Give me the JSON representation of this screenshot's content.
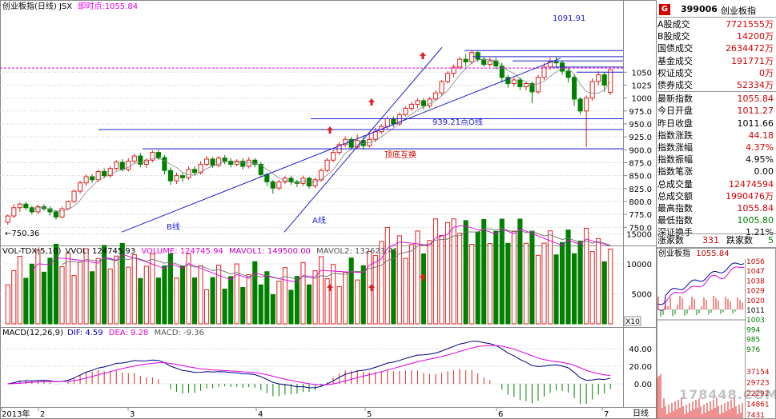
{
  "main_header": {
    "title": "创业板指(日线) JSX",
    "realtime_label": "即时点:",
    "realtime_value": "1055.84"
  },
  "main_chart": {
    "price_axis_ticks": [
      "1050",
      "1025",
      "1000",
      "975.0",
      "950.0",
      "925.0",
      "900.0",
      "875.0",
      "850.0",
      "825.0",
      "800.0",
      "775.0",
      "750.0"
    ],
    "annotations": {
      "high_label": "1091.91",
      "low_label": "750.36",
      "line_o": "939.21点O线",
      "line_b": "B线",
      "line_a": "A线",
      "top_bottom_swap": "顶底互换"
    }
  },
  "volume_header": {
    "name": "VOL-TDX(5,10)",
    "vvol": "VVOL: 124745.93",
    "volume": "VOLUME: 124745.94",
    "mavol1": "MAVOL1: 149500.00",
    "mavol2": "MAVOL2: 132623.41"
  },
  "volume_chart": {
    "axis_ticks": [
      "15000",
      "10000",
      "5000"
    ],
    "unit_badge": "X10"
  },
  "macd_header": {
    "name": "MACD(12,26,9)",
    "dif": "DIF: 4.59",
    "dea": "DEA: 9.28",
    "macd": "MACD: -9.36"
  },
  "macd_chart": {
    "axis_ticks": [
      "40.00",
      "20.00",
      "0.00"
    ]
  },
  "time_axis": {
    "labels": [
      "2013年",
      "2",
      "3",
      "4",
      "5",
      "6",
      "7"
    ],
    "period": "日线"
  },
  "side_panel": {
    "badge": "G",
    "code": "399006",
    "name": "创业板指",
    "rows": [
      {
        "label": "A股成交",
        "value": "7721555万",
        "color": "#d00000"
      },
      {
        "label": "B股成交",
        "value": "14200万",
        "color": "#d00000"
      },
      {
        "label": "国债成交",
        "value": "2634472万",
        "color": "#d00000"
      },
      {
        "label": "基金成交",
        "value": "191771万",
        "color": "#d00000"
      },
      {
        "label": "权证成交",
        "value": "0万",
        "color": "#d00000"
      },
      {
        "label": "债券成交",
        "value": "52334万",
        "color": "#d00000"
      },
      {
        "label": "最新指数",
        "value": "1055.84",
        "color": "#d00000"
      },
      {
        "label": "今日开盘",
        "value": "1011.27",
        "color": "#d00000"
      },
      {
        "label": "昨日收盘",
        "value": "1011.66",
        "color": "#000000"
      },
      {
        "label": "指数涨跌",
        "value": "44.18",
        "color": "#d00000"
      },
      {
        "label": "指数涨幅",
        "value": "4.37%",
        "color": "#d00000"
      },
      {
        "label": "指数振幅",
        "value": "4.95%",
        "color": "#000000"
      },
      {
        "label": "指数笔涨",
        "value": "0.00",
        "color": "#000000"
      },
      {
        "label": "总成交量",
        "value": "12474594",
        "color": "#d00000"
      },
      {
        "label": "总成交额",
        "value": "1990476万",
        "color": "#d00000"
      },
      {
        "label": "最高指数",
        "value": "1055.84",
        "color": "#d00000"
      },
      {
        "label": "最低指数",
        "value": "1005.80",
        "color": "#008000"
      },
      {
        "label": "深证换手",
        "value": "1.21%",
        "color": "#000000"
      }
    ],
    "breadth": {
      "up_label": "涨家数",
      "up_value": "331",
      "down_label": "跌家数",
      "down_value": "5"
    },
    "mini_chart": {
      "title": "创业板指",
      "price": "1055.84",
      "ticks": [
        "1056",
        "1047",
        "1038",
        "1029",
        "1020",
        "1011",
        "1003",
        "994",
        "985",
        "976"
      ],
      "vol_ticks": [
        "37154",
        "29723",
        "22292",
        "14861",
        "7431"
      ]
    }
  },
  "watermark": "178448.COM",
  "colors": {
    "up": "#e02020",
    "down": "#008000",
    "line": "#2020d0",
    "ma2": "#e000e0"
  }
}
